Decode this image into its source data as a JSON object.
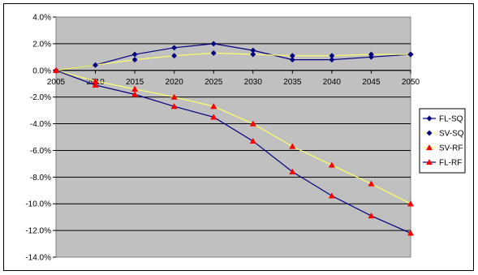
{
  "chart_data": {
    "type": "line",
    "title": "",
    "xlabel": "",
    "ylabel": "",
    "categories": [
      "2005",
      "2010",
      "2015",
      "2020",
      "2025",
      "2030",
      "2035",
      "2040",
      "2045",
      "2050"
    ],
    "ylim": [
      -0.14,
      0.04
    ],
    "yticks": [
      "4.0%",
      "2.0%",
      "0.0%",
      "-2.0%",
      "-4.0%",
      "-6.0%",
      "-8.0%",
      "-10.0%",
      "-12.0%",
      "-14.0%"
    ],
    "plot_background": "#c0c0c0",
    "grid": "horizontal",
    "legend_position": "right",
    "series": [
      {
        "name": "FL-SQ",
        "color": "#000080",
        "marker": "diamond",
        "values": [
          0.0,
          0.004,
          0.012,
          0.017,
          0.02,
          0.015,
          0.008,
          0.008,
          0.01,
          0.012
        ]
      },
      {
        "name": "SV-SQ",
        "color": "#ffff66",
        "marker": "diamond",
        "marker_color": "#000080",
        "values": [
          0.0,
          0.004,
          0.008,
          0.011,
          0.013,
          0.012,
          0.011,
          0.011,
          0.012,
          0.012
        ]
      },
      {
        "name": "SV-RF",
        "color": "#ffff66",
        "marker": "triangle",
        "marker_color": "#ff0000",
        "values": [
          0.0,
          -0.008,
          -0.014,
          -0.02,
          -0.027,
          -0.04,
          -0.057,
          -0.071,
          -0.085,
          -0.1
        ]
      },
      {
        "name": "FL-RF",
        "color": "#000080",
        "marker": "triangle",
        "marker_color": "#ff0000",
        "values": [
          0.0,
          -0.011,
          -0.018,
          -0.027,
          -0.035,
          -0.053,
          -0.076,
          -0.094,
          -0.109,
          -0.122
        ]
      }
    ]
  }
}
